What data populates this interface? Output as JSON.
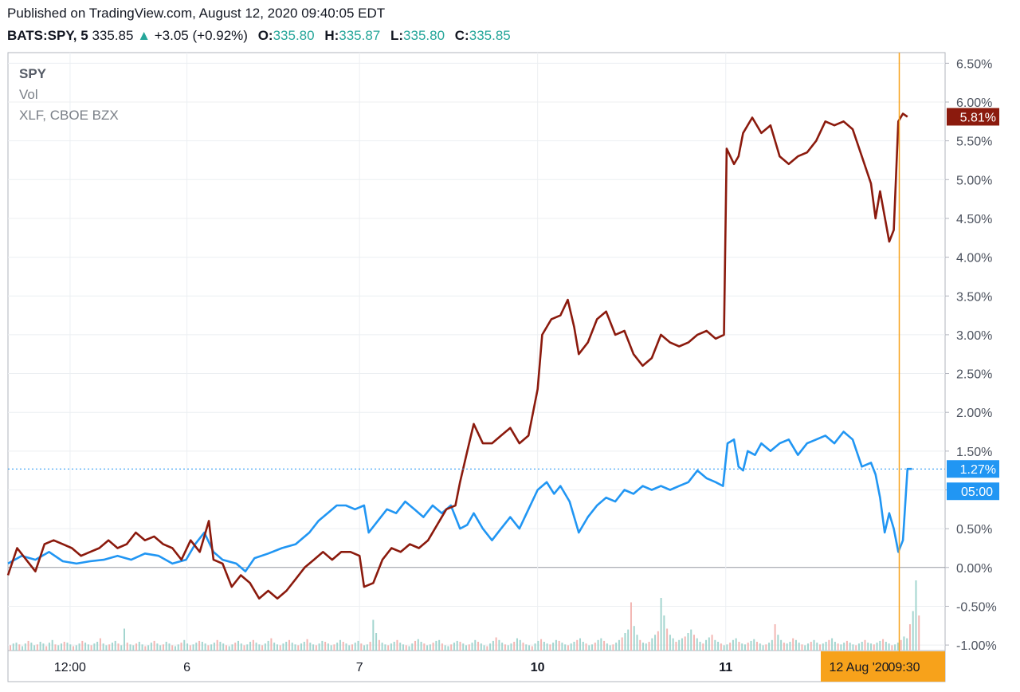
{
  "header": {
    "published": "Published on TradingView.com, August 12, 2020 09:40:05 EDT",
    "symbol": "BATS:SPY, 5",
    "last": "335.85",
    "change": "+3.05 (+0.92%)",
    "open_label": "O:",
    "open": "335.80",
    "high_label": "H:",
    "high": "335.87",
    "low_label": "L:",
    "low": "335.80",
    "close_label": "C:",
    "close": "335.85"
  },
  "legend": {
    "spy": "SPY",
    "vol": "Vol",
    "xlf": "XLF, CBOE BZX"
  },
  "colors": {
    "spy": "#2196f3",
    "xlf": "#8b1a0d",
    "crosshair": "#f7a21b",
    "grid": "#eceff2",
    "vol_up": "#a3d5cf",
    "vol_down": "#f3b6b3"
  },
  "chart_data": {
    "type": "line",
    "y_unit": "%",
    "ylim": [
      -1.0,
      6.75
    ],
    "y_ticks": [
      "6.50%",
      "6.00%",
      "5.50%",
      "5.00%",
      "4.50%",
      "4.00%",
      "3.50%",
      "3.00%",
      "2.50%",
      "2.00%",
      "1.50%",
      "1.00%",
      "0.50%",
      "0.00%",
      "-0.50%",
      "-1.00%"
    ],
    "x_ticks": [
      "12:00",
      "6",
      "7",
      "10",
      "11"
    ],
    "bold_x_ticks": [
      "10",
      "11"
    ],
    "time_range": [
      0,
      100
    ],
    "x_tick_positions": [
      6.8,
      19.6,
      38.5,
      58.0,
      78.6
    ],
    "series": [
      {
        "key": "spy",
        "label": "1.27%",
        "last_value": 1.27,
        "points": [
          [
            0,
            0.05
          ],
          [
            1.5,
            0.15
          ],
          [
            3,
            0.1
          ],
          [
            4.5,
            0.2
          ],
          [
            6,
            0.08
          ],
          [
            7.5,
            0.05
          ],
          [
            9,
            0.08
          ],
          [
            10.5,
            0.1
          ],
          [
            12,
            0.15
          ],
          [
            13.5,
            0.1
          ],
          [
            15,
            0.18
          ],
          [
            16.5,
            0.15
          ],
          [
            18,
            0.05
          ],
          [
            19.5,
            0.1
          ],
          [
            20.5,
            0.3
          ],
          [
            21.5,
            0.45
          ],
          [
            22.5,
            0.2
          ],
          [
            23.5,
            0.1
          ],
          [
            25,
            0.05
          ],
          [
            26,
            -0.05
          ],
          [
            27,
            0.12
          ],
          [
            28.5,
            0.18
          ],
          [
            30,
            0.25
          ],
          [
            31.5,
            0.3
          ],
          [
            33,
            0.45
          ],
          [
            34,
            0.6
          ],
          [
            35,
            0.7
          ],
          [
            36,
            0.8
          ],
          [
            37,
            0.8
          ],
          [
            38,
            0.75
          ],
          [
            39,
            0.8
          ],
          [
            39.5,
            0.45
          ],
          [
            40.5,
            0.6
          ],
          [
            41.5,
            0.75
          ],
          [
            42.5,
            0.7
          ],
          [
            43.5,
            0.85
          ],
          [
            44.5,
            0.75
          ],
          [
            45.5,
            0.65
          ],
          [
            46.5,
            0.8
          ],
          [
            47.5,
            0.7
          ],
          [
            48.5,
            0.8
          ],
          [
            49.5,
            0.5
          ],
          [
            50.3,
            0.55
          ],
          [
            51,
            0.7
          ],
          [
            52,
            0.5
          ],
          [
            53,
            0.35
          ],
          [
            54,
            0.5
          ],
          [
            55,
            0.65
          ],
          [
            56,
            0.5
          ],
          [
            57,
            0.75
          ],
          [
            58,
            1.0
          ],
          [
            59,
            1.1
          ],
          [
            59.8,
            0.95
          ],
          [
            60.5,
            1.05
          ],
          [
            61.5,
            0.85
          ],
          [
            62.5,
            0.45
          ],
          [
            63.5,
            0.65
          ],
          [
            64.5,
            0.8
          ],
          [
            65.5,
            0.9
          ],
          [
            66.5,
            0.85
          ],
          [
            67.5,
            1.0
          ],
          [
            68.5,
            0.95
          ],
          [
            69.5,
            1.05
          ],
          [
            70.5,
            1.0
          ],
          [
            71.5,
            1.05
          ],
          [
            72.5,
            1.0
          ],
          [
            73.5,
            1.05
          ],
          [
            74.5,
            1.1
          ],
          [
            75.5,
            1.25
          ],
          [
            76.5,
            1.15
          ],
          [
            77.5,
            1.1
          ],
          [
            78.3,
            1.05
          ],
          [
            78.8,
            1.6
          ],
          [
            79.5,
            1.65
          ],
          [
            80,
            1.3
          ],
          [
            80.5,
            1.25
          ],
          [
            81,
            1.5
          ],
          [
            81.8,
            1.45
          ],
          [
            82.5,
            1.6
          ],
          [
            83.5,
            1.5
          ],
          [
            84.5,
            1.6
          ],
          [
            85.5,
            1.65
          ],
          [
            86.5,
            1.45
          ],
          [
            87.5,
            1.6
          ],
          [
            88.5,
            1.65
          ],
          [
            89.5,
            1.7
          ],
          [
            90.5,
            1.6
          ],
          [
            91.5,
            1.75
          ],
          [
            92.5,
            1.65
          ],
          [
            93.5,
            1.3
          ],
          [
            94.5,
            1.35
          ],
          [
            95,
            1.2
          ],
          [
            95.5,
            0.9
          ],
          [
            96,
            0.45
          ],
          [
            96.5,
            0.7
          ],
          [
            97,
            0.5
          ],
          [
            97.5,
            0.2
          ],
          [
            98,
            0.35
          ],
          [
            98.5,
            1.27
          ],
          [
            99,
            1.27
          ]
        ]
      },
      {
        "key": "xlf",
        "label": "5.81%",
        "last_value": 5.81,
        "points": [
          [
            0,
            -0.1
          ],
          [
            1,
            0.25
          ],
          [
            2,
            0.1
          ],
          [
            3,
            -0.05
          ],
          [
            4,
            0.3
          ],
          [
            5,
            0.35
          ],
          [
            6,
            0.3
          ],
          [
            7,
            0.25
          ],
          [
            8,
            0.15
          ],
          [
            9,
            0.2
          ],
          [
            10,
            0.25
          ],
          [
            11,
            0.35
          ],
          [
            12,
            0.25
          ],
          [
            13,
            0.3
          ],
          [
            14,
            0.45
          ],
          [
            15,
            0.35
          ],
          [
            16,
            0.4
          ],
          [
            17,
            0.3
          ],
          [
            18,
            0.25
          ],
          [
            19,
            0.1
          ],
          [
            20,
            0.35
          ],
          [
            21,
            0.2
          ],
          [
            22,
            0.6
          ],
          [
            22.5,
            0.1
          ],
          [
            23.5,
            0.05
          ],
          [
            24.5,
            -0.25
          ],
          [
            25.5,
            -0.1
          ],
          [
            26.5,
            -0.2
          ],
          [
            27.5,
            -0.4
          ],
          [
            28.5,
            -0.3
          ],
          [
            29.5,
            -0.4
          ],
          [
            30.5,
            -0.3
          ],
          [
            31.5,
            -0.15
          ],
          [
            32.5,
            0.0
          ],
          [
            33.5,
            0.1
          ],
          [
            34.5,
            0.2
          ],
          [
            35.5,
            0.1
          ],
          [
            36.5,
            0.2
          ],
          [
            37.5,
            0.2
          ],
          [
            38.5,
            0.15
          ],
          [
            39,
            -0.25
          ],
          [
            40,
            -0.2
          ],
          [
            41,
            0.1
          ],
          [
            42,
            0.25
          ],
          [
            43,
            0.2
          ],
          [
            44,
            0.3
          ],
          [
            45,
            0.25
          ],
          [
            46,
            0.35
          ],
          [
            47,
            0.55
          ],
          [
            48,
            0.75
          ],
          [
            49,
            0.8
          ],
          [
            49.5,
            1.1
          ],
          [
            50.3,
            1.5
          ],
          [
            51,
            1.85
          ],
          [
            52,
            1.6
          ],
          [
            53,
            1.6
          ],
          [
            54,
            1.7
          ],
          [
            55,
            1.8
          ],
          [
            56,
            1.6
          ],
          [
            57,
            1.7
          ],
          [
            58,
            2.3
          ],
          [
            58.5,
            3.0
          ],
          [
            59.5,
            3.2
          ],
          [
            60.5,
            3.25
          ],
          [
            61.3,
            3.45
          ],
          [
            62,
            3.1
          ],
          [
            62.5,
            2.75
          ],
          [
            63.5,
            2.9
          ],
          [
            64.5,
            3.2
          ],
          [
            65.5,
            3.3
          ],
          [
            66.5,
            3.0
          ],
          [
            67.5,
            3.05
          ],
          [
            68.5,
            2.75
          ],
          [
            69.5,
            2.6
          ],
          [
            70.5,
            2.7
          ],
          [
            71.5,
            3.0
          ],
          [
            72.5,
            2.9
          ],
          [
            73.5,
            2.85
          ],
          [
            74.5,
            2.9
          ],
          [
            75.5,
            3.0
          ],
          [
            76.5,
            3.05
          ],
          [
            77.5,
            2.95
          ],
          [
            78.4,
            3.0
          ],
          [
            78.7,
            5.4
          ],
          [
            79.5,
            5.2
          ],
          [
            80,
            5.3
          ],
          [
            80.5,
            5.6
          ],
          [
            81.5,
            5.8
          ],
          [
            82.5,
            5.6
          ],
          [
            83.5,
            5.7
          ],
          [
            84.5,
            5.3
          ],
          [
            85.5,
            5.2
          ],
          [
            86.5,
            5.3
          ],
          [
            87.5,
            5.35
          ],
          [
            88.5,
            5.5
          ],
          [
            89.5,
            5.75
          ],
          [
            90.5,
            5.7
          ],
          [
            91.5,
            5.75
          ],
          [
            92.5,
            5.65
          ],
          [
            93.5,
            5.3
          ],
          [
            94.5,
            4.95
          ],
          [
            95,
            4.5
          ],
          [
            95.5,
            4.85
          ],
          [
            96.5,
            4.2
          ],
          [
            97,
            4.35
          ],
          [
            97.5,
            5.75
          ],
          [
            98,
            5.85
          ],
          [
            98.5,
            5.81
          ]
        ]
      }
    ],
    "volume": [
      6,
      8,
      9,
      7,
      5,
      8,
      11,
      9,
      6,
      7,
      10,
      8,
      5,
      9,
      12,
      7,
      6,
      8,
      10,
      9,
      7,
      5,
      6,
      8,
      11,
      9,
      7,
      6,
      8,
      10,
      14,
      8,
      6,
      7,
      9,
      11,
      8,
      6,
      25,
      9,
      7,
      6,
      8,
      10,
      7,
      5,
      6,
      9,
      11,
      8,
      6,
      7,
      10,
      8,
      6,
      5,
      7,
      9,
      12,
      8,
      6,
      7,
      9,
      11,
      10,
      8,
      6,
      7,
      9,
      12,
      10,
      8,
      6,
      5,
      7,
      9,
      11,
      8,
      6,
      7,
      10,
      12,
      9,
      7,
      6,
      8,
      11,
      14,
      9,
      7,
      6,
      8,
      10,
      12,
      9,
      7,
      6,
      8,
      10,
      13,
      9,
      7,
      6,
      8,
      11,
      10,
      8,
      6,
      7,
      9,
      12,
      10,
      8,
      6,
      7,
      9,
      11,
      8,
      6,
      7,
      10,
      35,
      20,
      12,
      9,
      7,
      6,
      8,
      10,
      12,
      9,
      7,
      6,
      5,
      8,
      11,
      13,
      10,
      8,
      6,
      7,
      9,
      11,
      12,
      8,
      6,
      5,
      7,
      9,
      11,
      10,
      8,
      6,
      7,
      9,
      12,
      10,
      8,
      6,
      5,
      8,
      11,
      15,
      12,
      9,
      7,
      6,
      8,
      10,
      14,
      12,
      9,
      7,
      6,
      5,
      8,
      11,
      13,
      10,
      8,
      7,
      9,
      12,
      11,
      9,
      7,
      6,
      8,
      10,
      12,
      14,
      10,
      8,
      6,
      7,
      9,
      12,
      14,
      11,
      8,
      6,
      7,
      9,
      12,
      15,
      20,
      24,
      55,
      28,
      18,
      12,
      9,
      8,
      10,
      14,
      18,
      22,
      60,
      40,
      25,
      18,
      14,
      10,
      12,
      14,
      16,
      20,
      24,
      18,
      14,
      10,
      8,
      12,
      15,
      18,
      12,
      10,
      8,
      6,
      7,
      9,
      12,
      14,
      10,
      8,
      7,
      9,
      11,
      13,
      10,
      8,
      6,
      7,
      9,
      12,
      30,
      18,
      12,
      9,
      8,
      10,
      14,
      12,
      9,
      7,
      6,
      8,
      10,
      12,
      9,
      7,
      8,
      10,
      12,
      14,
      10,
      8,
      7,
      9,
      11,
      9,
      7,
      6,
      8,
      10,
      12,
      9,
      8,
      7,
      9,
      11,
      13,
      10,
      8,
      6,
      7,
      9,
      12,
      16,
      14,
      30,
      45,
      80,
      40
    ],
    "crosshair_time": 97.6,
    "crosshair_date": "12 Aug '20",
    "crosshair_time_label": "09:30",
    "countdown": "05:00"
  }
}
